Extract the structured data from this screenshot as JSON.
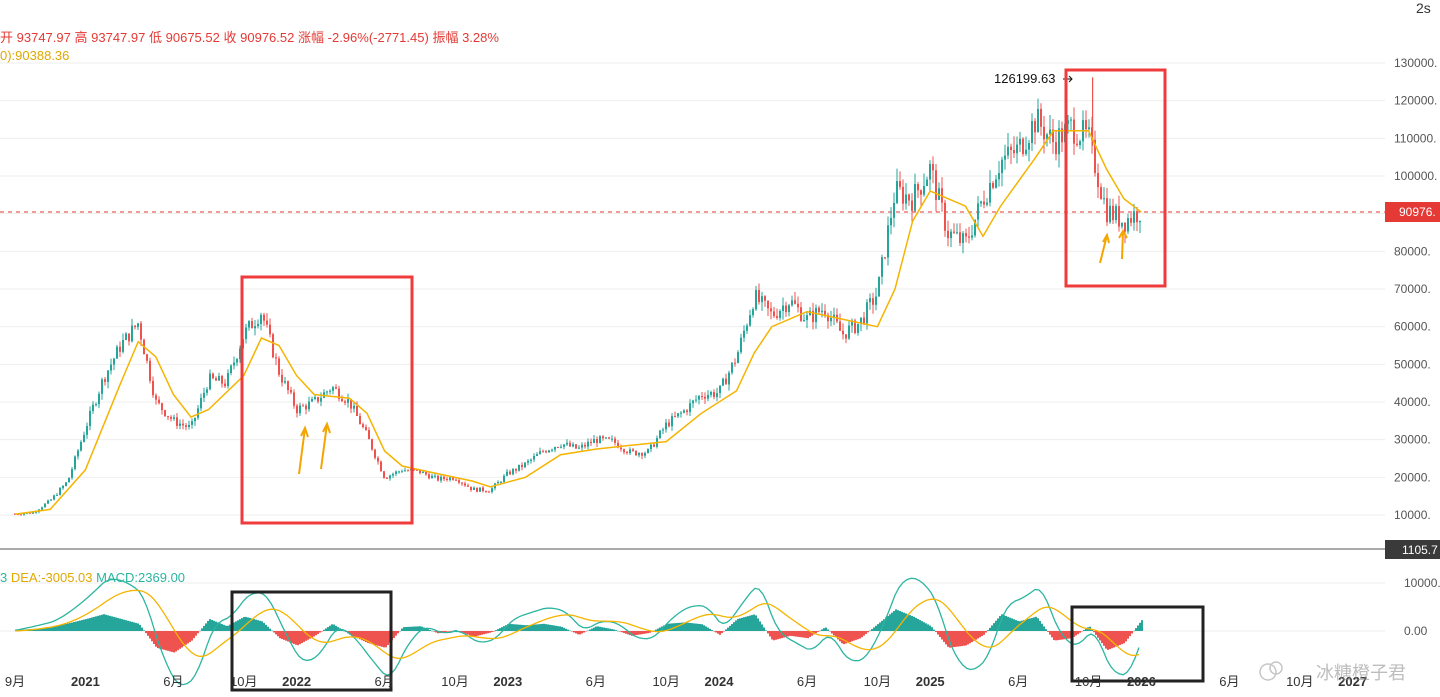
{
  "interval_label": "2s",
  "ohlc_header": {
    "open_label": "开",
    "open": "93747.97",
    "high_label": "高",
    "high": "93747.97",
    "low_label": "低",
    "low": "90675.52",
    "close_label": "收",
    "close": "90976.52",
    "change_label": "涨幅",
    "change": "-2.96%(-2771.45)",
    "amp_label": "振幅",
    "amp": "3.28%"
  },
  "ma_label": "0):90388.36",
  "macd_header": {
    "lead": "3",
    "dea": "DEA:-3005.03",
    "macd": "MACD:2369.00"
  },
  "peak_annotation": "126199.63",
  "price_tag": "90976.",
  "divider_tag": "1105.7",
  "watermark": "冰糖橙子君",
  "colors": {
    "up": "#26a69a",
    "down": "#ef5350",
    "ma": "#f5b400",
    "box_red": "#ef3b3b",
    "box_dark": "#222222",
    "arrow": "#f5a500",
    "price_line": "#e53935"
  },
  "chart_data": [
    {
      "type": "candlestick",
      "title": "",
      "y_axis": {
        "min": 10000,
        "max": 130000,
        "ticks": [
          "130000.",
          "120000.",
          "110000.",
          "100000.",
          "90000.",
          "80000.",
          "70000.",
          "60000.",
          "50000.",
          "40000.",
          "30000.",
          "20000.",
          "10000."
        ]
      },
      "x_ticks": [
        "9月",
        "2021",
        "6月",
        "10月",
        "2022",
        "6月",
        "10月",
        "2023",
        "6月",
        "10月",
        "2024",
        "6月",
        "10月",
        "2025",
        "6月",
        "10月",
        "2026",
        "6月",
        "10月",
        "2027"
      ],
      "x_ticks_bold": [
        "2021",
        "2022",
        "2023",
        "2024",
        "2025",
        "2026",
        "2027"
      ],
      "price_path": [
        [
          "2020-09",
          10300
        ],
        [
          "2020-10",
          10600
        ],
        [
          "2020-11",
          13800
        ],
        [
          "2020-12",
          19000
        ],
        [
          "2021-01",
          33000
        ],
        [
          "2021-02",
          46000
        ],
        [
          "2021-03",
          55000
        ],
        [
          "2021-04",
          61000
        ],
        [
          "2021-05",
          40000
        ],
        [
          "2021-06",
          35000
        ],
        [
          "2021-07",
          33000
        ],
        [
          "2021-08",
          46000
        ],
        [
          "2021-09",
          45000
        ],
        [
          "2021-10",
          58000
        ],
        [
          "2021-11",
          64000
        ],
        [
          "2021-12",
          48000
        ],
        [
          "2022-01",
          38000
        ],
        [
          "2022-02",
          40000
        ],
        [
          "2022-03",
          44000
        ],
        [
          "2022-04",
          40000
        ],
        [
          "2022-05",
          31000
        ],
        [
          "2022-06",
          20000
        ],
        [
          "2022-07",
          22000
        ],
        [
          "2022-08",
          21500
        ],
        [
          "2022-09",
          19500
        ],
        [
          "2022-10",
          20000
        ],
        [
          "2022-11",
          16800
        ],
        [
          "2022-12",
          16600
        ],
        [
          "2023-01",
          21000
        ],
        [
          "2023-02",
          23500
        ],
        [
          "2023-03",
          27000
        ],
        [
          "2023-04",
          29000
        ],
        [
          "2023-05",
          27500
        ],
        [
          "2023-06",
          30000
        ],
        [
          "2023-07",
          29500
        ],
        [
          "2023-08",
          26500
        ],
        [
          "2023-09",
          26800
        ],
        [
          "2023-10",
          34000
        ],
        [
          "2023-11",
          37500
        ],
        [
          "2023-12",
          42000
        ],
        [
          "2024-01",
          42500
        ],
        [
          "2024-02",
          52000
        ],
        [
          "2024-03",
          68000
        ],
        [
          "2024-04",
          63000
        ],
        [
          "2024-05",
          67000
        ],
        [
          "2024-06",
          62000
        ],
        [
          "2024-07",
          65000
        ],
        [
          "2024-08",
          58000
        ],
        [
          "2024-09",
          61000
        ],
        [
          "2024-10",
          69000
        ],
        [
          "2024-11",
          96000
        ],
        [
          "2024-12",
          94000
        ],
        [
          "2025-01",
          102000
        ],
        [
          "2025-02",
          85000
        ],
        [
          "2025-03",
          82000
        ],
        [
          "2025-04",
          94000
        ],
        [
          "2025-05",
          104000
        ],
        [
          "2025-06",
          107000
        ],
        [
          "2025-07",
          115000
        ],
        [
          "2025-08",
          109000
        ],
        [
          "2025-09",
          113000
        ],
        [
          "2025-10",
          110000
        ],
        [
          "2025-11",
          91000
        ],
        [
          "2025-12",
          88000
        ],
        [
          "2026-01",
          91000
        ]
      ],
      "ma_path": [
        [
          "2020-09",
          10200
        ],
        [
          "2020-11",
          11500
        ],
        [
          "2021-01",
          22000
        ],
        [
          "2021-03",
          45000
        ],
        [
          "2021-04",
          56000
        ],
        [
          "2021-05",
          52000
        ],
        [
          "2021-06",
          42000
        ],
        [
          "2021-07",
          36000
        ],
        [
          "2021-08",
          38000
        ],
        [
          "2021-10",
          47000
        ],
        [
          "2021-11",
          57000
        ],
        [
          "2021-12",
          55000
        ],
        [
          "2022-01",
          47000
        ],
        [
          "2022-02",
          42000
        ],
        [
          "2022-04",
          41000
        ],
        [
          "2022-05",
          37000
        ],
        [
          "2022-06",
          27000
        ],
        [
          "2022-07",
          23000
        ],
        [
          "2022-09",
          21000
        ],
        [
          "2022-11",
          19000
        ],
        [
          "2022-12",
          17500
        ],
        [
          "2023-02",
          20000
        ],
        [
          "2023-04",
          26000
        ],
        [
          "2023-06",
          27500
        ],
        [
          "2023-08",
          28500
        ],
        [
          "2023-10",
          29500
        ],
        [
          "2023-12",
          37000
        ],
        [
          "2024-02",
          43000
        ],
        [
          "2024-03",
          53000
        ],
        [
          "2024-04",
          60000
        ],
        [
          "2024-06",
          64000
        ],
        [
          "2024-08",
          62000
        ],
        [
          "2024-10",
          60000
        ],
        [
          "2024-11",
          70000
        ],
        [
          "2024-12",
          88000
        ],
        [
          "2025-01",
          96000
        ],
        [
          "2025-03",
          92000
        ],
        [
          "2025-04",
          84000
        ],
        [
          "2025-05",
          92000
        ],
        [
          "2025-07",
          105000
        ],
        [
          "2025-08",
          112000
        ],
        [
          "2025-10",
          112000
        ],
        [
          "2025-11",
          102000
        ],
        [
          "2025-12",
          94000
        ],
        [
          "2026-01",
          90388
        ]
      ],
      "peak": [
        "2025-10",
        126199.63
      ],
      "last_close": 90976.52
    },
    {
      "type": "macd",
      "y_axis": {
        "ticks": [
          "10000.",
          "0.00"
        ]
      },
      "series": [
        {
          "name": "DEA",
          "last": -3005.03
        },
        {
          "name": "MACD",
          "last": 2369.0
        }
      ],
      "histogram_approx": [
        [
          "2020-09",
          200
        ],
        [
          "2020-11",
          700
        ],
        [
          "2021-01",
          2500
        ],
        [
          "2021-02",
          3500
        ],
        [
          "2021-03",
          2500
        ],
        [
          "2021-04",
          1500
        ],
        [
          "2021-05",
          -3500
        ],
        [
          "2021-06",
          -4500
        ],
        [
          "2021-07",
          -2000
        ],
        [
          "2021-08",
          2500
        ],
        [
          "2021-09",
          1000
        ],
        [
          "2021-10",
          3000
        ],
        [
          "2021-11",
          2000
        ],
        [
          "2021-12",
          -1500
        ],
        [
          "2022-01",
          -3000
        ],
        [
          "2022-02",
          -1000
        ],
        [
          "2022-03",
          1500
        ],
        [
          "2022-04",
          -800
        ],
        [
          "2022-05",
          -2500
        ],
        [
          "2022-06",
          -3500
        ],
        [
          "2022-07",
          800
        ],
        [
          "2022-08",
          1000
        ],
        [
          "2022-09",
          -500
        ],
        [
          "2022-10",
          200
        ],
        [
          "2022-11",
          -1200
        ],
        [
          "2022-12",
          -300
        ],
        [
          "2023-01",
          1500
        ],
        [
          "2023-02",
          1200
        ],
        [
          "2023-03",
          1500
        ],
        [
          "2023-04",
          900
        ],
        [
          "2023-05",
          -800
        ],
        [
          "2023-06",
          1000
        ],
        [
          "2023-07",
          300
        ],
        [
          "2023-08",
          -1000
        ],
        [
          "2023-09",
          -400
        ],
        [
          "2023-10",
          1500
        ],
        [
          "2023-11",
          1800
        ],
        [
          "2023-12",
          1400
        ],
        [
          "2024-01",
          -800
        ],
        [
          "2024-02",
          2500
        ],
        [
          "2024-03",
          3500
        ],
        [
          "2024-04",
          -2000
        ],
        [
          "2024-05",
          -1000
        ],
        [
          "2024-06",
          -1500
        ],
        [
          "2024-07",
          800
        ],
        [
          "2024-08",
          -2800
        ],
        [
          "2024-09",
          -1500
        ],
        [
          "2024-10",
          1500
        ],
        [
          "2024-11",
          4500
        ],
        [
          "2024-12",
          3000
        ],
        [
          "2025-01",
          1000
        ],
        [
          "2025-02",
          -3500
        ],
        [
          "2025-03",
          -3000
        ],
        [
          "2025-04",
          -800
        ],
        [
          "2025-05",
          3500
        ],
        [
          "2025-06",
          2000
        ],
        [
          "2025-07",
          3000
        ],
        [
          "2025-08",
          -2000
        ],
        [
          "2025-09",
          -1500
        ],
        [
          "2025-10",
          1000
        ],
        [
          "2025-11",
          -4000
        ],
        [
          "2025-12",
          -2500
        ],
        [
          "2026-01",
          2369
        ]
      ]
    }
  ]
}
